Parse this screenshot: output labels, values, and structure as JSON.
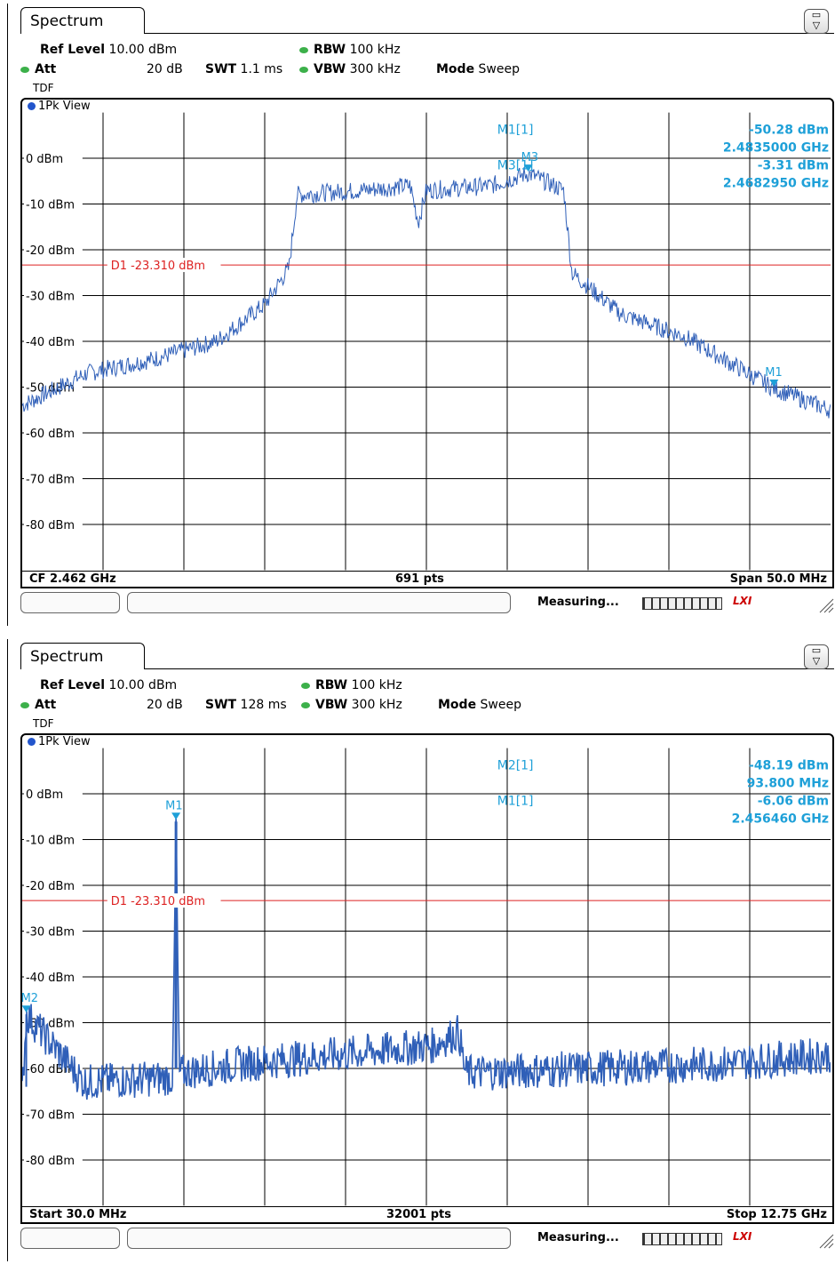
{
  "panels": [
    {
      "tab_label": "Spectrum",
      "ref_level_label": "Ref Level",
      "ref_level": "10.00 dBm",
      "att_label": "Att",
      "att": "20 dB",
      "swt_label": "SWT",
      "swt": "1.1 ms",
      "rbw_label": "RBW",
      "rbw": "100 kHz",
      "vbw_label": "VBW",
      "vbw": "300 kHz",
      "mode_label": "Mode",
      "mode": "Sweep",
      "tdf": "TDF",
      "view_label": "1Pk View",
      "y_ticks": [
        "0 dBm",
        "-10 dBm",
        "-20 dBm",
        "-30 dBm",
        "-40 dBm",
        "-50 dBm",
        "-60 dBm",
        "-70 dBm",
        "-80 dBm"
      ],
      "display_line": "D1 -23.310 dBm",
      "marker_table": [
        {
          "name": "M1[1]",
          "level": "-50.28 dBm",
          "freq": "2.4835000 GHz"
        },
        {
          "name": "M3[1]",
          "level": "-3.31 dBm",
          "freq": "2.4682950 GHz"
        }
      ],
      "trace_markers": [
        "M3",
        "M1"
      ],
      "footer_left": "CF 2.462 GHz",
      "footer_center": "691 pts",
      "footer_right": "Span 50.0 MHz",
      "status": "Measuring...",
      "status_logo": "LXI",
      "trace_color": "#2f5fb8",
      "display_line_color": "#dd2222",
      "marker_color": "#1ea0d8"
    },
    {
      "tab_label": "Spectrum",
      "ref_level_label": "Ref Level",
      "ref_level": "10.00 dBm",
      "att_label": "Att",
      "att": "20 dB",
      "swt_label": "SWT",
      "swt": "128 ms",
      "rbw_label": "RBW",
      "rbw": "100 kHz",
      "vbw_label": "VBW",
      "vbw": "300 kHz",
      "mode_label": "Mode",
      "mode": "Sweep",
      "tdf": "TDF",
      "view_label": "1Pk View",
      "y_ticks": [
        "0 dBm",
        "-10 dBm",
        "-20 dBm",
        "-30 dBm",
        "-40 dBm",
        "-50 dBm",
        "-60 dBm",
        "-70 dBm",
        "-80 dBm"
      ],
      "display_line": "D1 -23.310 dBm",
      "marker_table": [
        {
          "name": "M2[1]",
          "level": "-48.19 dBm",
          "freq": "93.800 MHz"
        },
        {
          "name": "M1[1]",
          "level": "-6.06 dBm",
          "freq": "2.456460 GHz"
        }
      ],
      "trace_markers": [
        "M1",
        "M2"
      ],
      "footer_left": "Start 30.0 MHz",
      "footer_center": "32001 pts",
      "footer_right": "Stop 12.75 GHz",
      "status": "Measuring...",
      "status_logo": "LXI",
      "trace_color": "#2f5fb8",
      "display_line_color": "#dd2222",
      "marker_color": "#1ea0d8"
    }
  ],
  "chart_data": [
    {
      "type": "line",
      "ylim": [
        -90,
        10
      ],
      "x_unit": "GHz",
      "xlim": [
        2.437,
        2.487
      ],
      "display_line": -23.31,
      "series": [
        {
          "values_desc_points": [
            [
              2.437,
              -54
            ],
            [
              2.441,
              -47
            ],
            [
              2.445,
              -44
            ],
            [
              2.449,
              -40
            ],
            [
              2.452,
              -32
            ],
            [
              2.4535,
              -24
            ],
            [
              2.454,
              -8
            ],
            [
              2.458,
              -7
            ],
            [
              2.461,
              -6
            ],
            [
              2.4615,
              -14
            ],
            [
              2.462,
              -7
            ],
            [
              2.466,
              -6
            ],
            [
              2.4683,
              -3.3
            ],
            [
              2.4705,
              -7
            ],
            [
              2.471,
              -25
            ],
            [
              2.474,
              -34
            ],
            [
              2.478,
              -39
            ],
            [
              2.4835,
              -50.28
            ],
            [
              2.487,
              -55
            ]
          ]
        }
      ]
    },
    {
      "type": "line",
      "ylim": [
        -90,
        10
      ],
      "x_unit": "GHz",
      "xlim": [
        0.03,
        12.75
      ],
      "display_line": -23.31,
      "series": [
        {
          "values_desc_points": [
            [
              0.03,
              -66
            ],
            [
              0.0938,
              -48.19
            ],
            [
              1.0,
              -63
            ],
            [
              2.4,
              -62
            ],
            [
              2.45,
              -6.06
            ],
            [
              2.5,
              -61
            ],
            [
              3.5,
              -59
            ],
            [
              5.0,
              -57
            ],
            [
              6.5,
              -55
            ],
            [
              6.9,
              -52
            ],
            [
              7.0,
              -61
            ],
            [
              9.0,
              -60
            ],
            [
              11.0,
              -59
            ],
            [
              12.75,
              -57
            ]
          ]
        }
      ]
    }
  ]
}
